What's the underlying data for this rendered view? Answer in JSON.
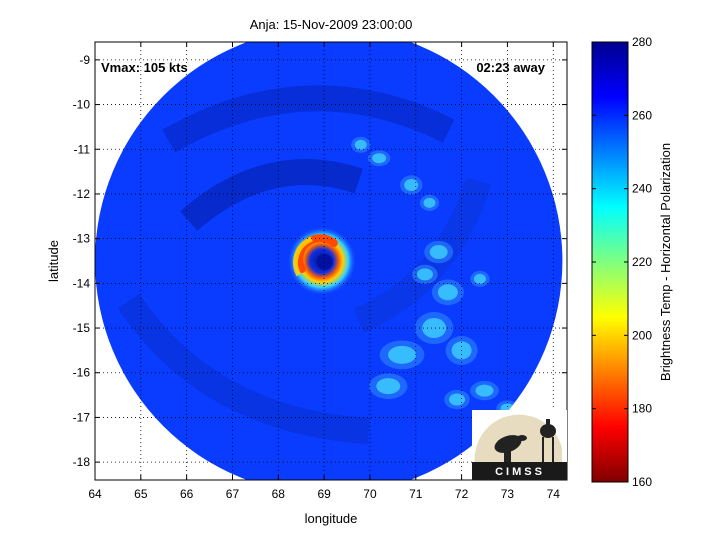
{
  "chart_data": {
    "type": "heatmap",
    "title": "Anja: 15-Nov-2009 23:00:00",
    "xlabel": "longitude",
    "ylabel": "latitude",
    "xlim": [
      64,
      74.3
    ],
    "ylim": [
      -18.4,
      -8.6
    ],
    "xticks": [
      64,
      65,
      66,
      67,
      68,
      69,
      70,
      71,
      72,
      73,
      74
    ],
    "yticks": [
      -9,
      -10,
      -11,
      -12,
      -13,
      -14,
      -15,
      -16,
      -17,
      -18
    ],
    "grid": true,
    "annotations": {
      "vmax": "Vmax: 105 kts",
      "time_away": "02:23 away"
    },
    "colorbar": {
      "label": "Brightness Temp - Horizontal Polarization",
      "range": [
        160,
        280
      ],
      "ticks": [
        160,
        180,
        200,
        220,
        240,
        260,
        280
      ],
      "colormap": "jet"
    },
    "storm_center": {
      "lon": 69.1,
      "lat": -13.5
    },
    "swath_radius_deg": 5.1,
    "logo_text": "CIMSS"
  },
  "colors": {
    "background": "#0a3cff",
    "eyewall": "#ff4a00",
    "eye": "#0010a0"
  }
}
